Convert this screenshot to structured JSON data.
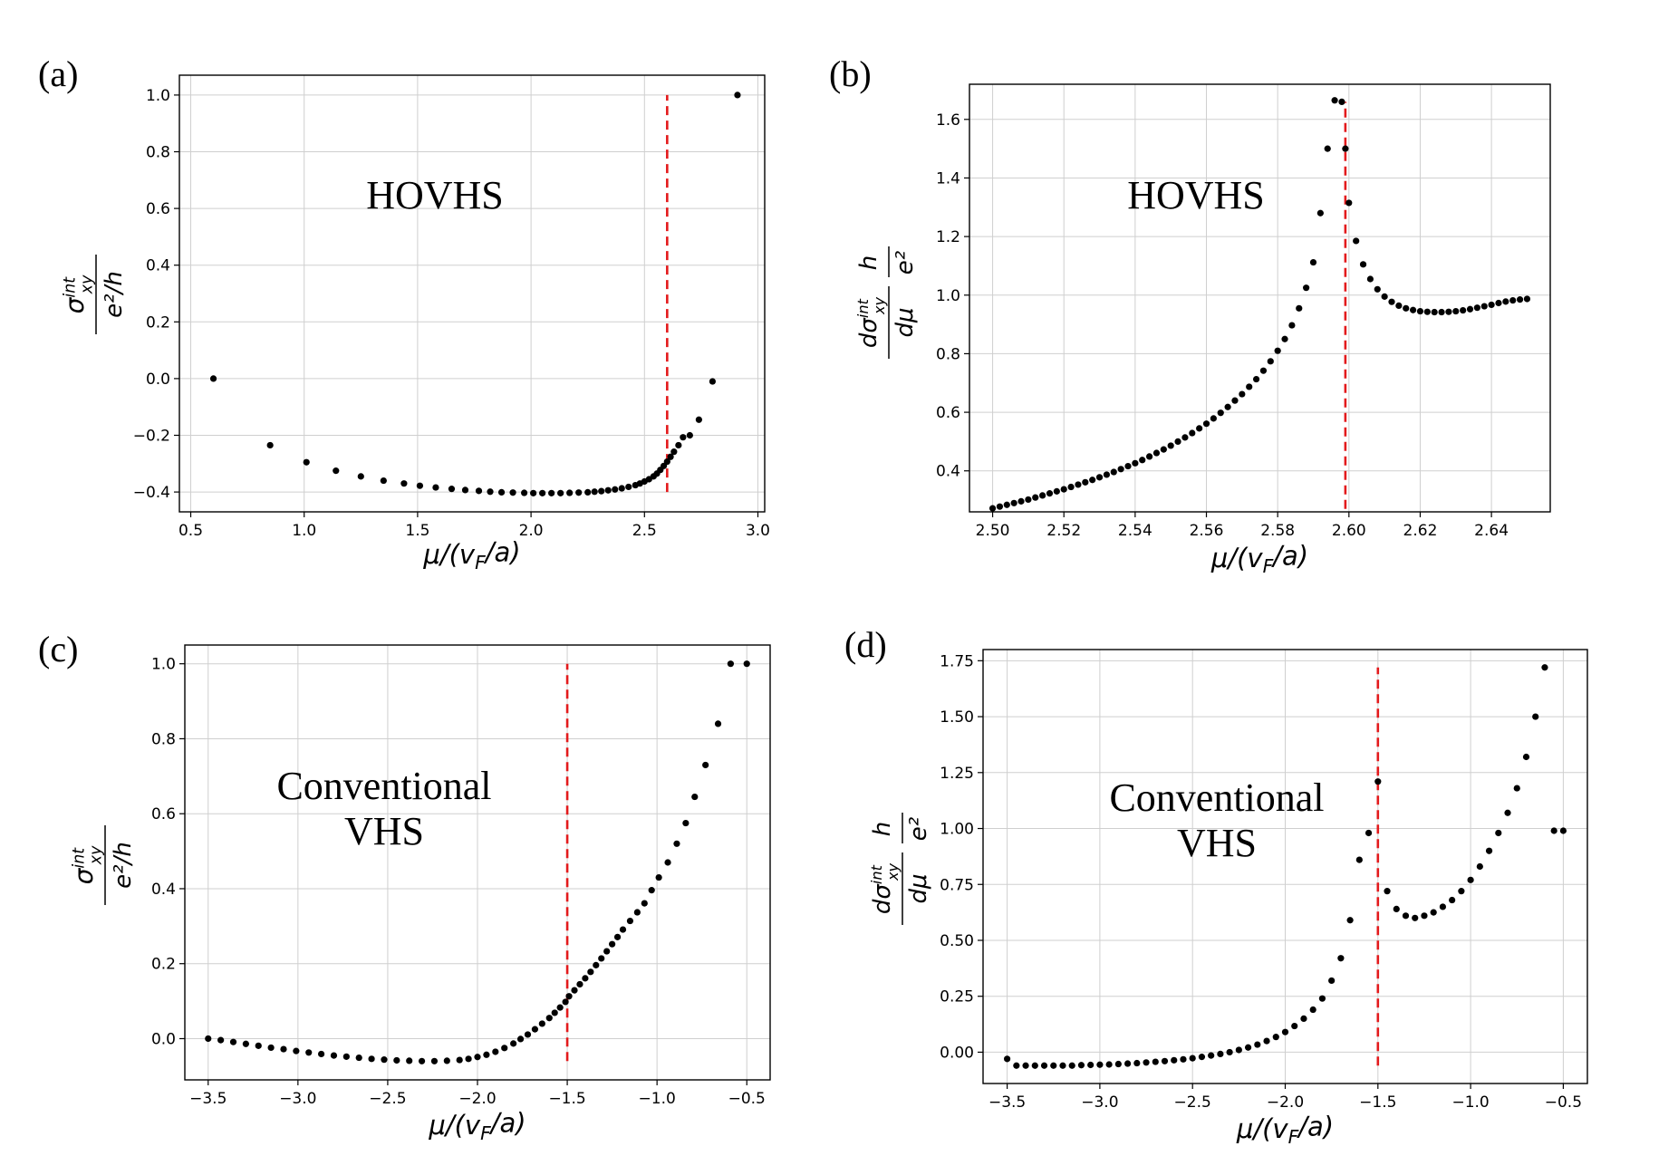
{
  "chart_data": [
    {
      "id": "a",
      "type": "scatter",
      "panel_label": "(a)",
      "annotation": [
        "HOVHS"
      ],
      "xlabel": "μ/(v_F/a)",
      "ylabel": {
        "num": "σ_xy^int",
        "den": "e²/h"
      },
      "xlim": [
        0.45,
        3.03
      ],
      "ylim": [
        -0.47,
        1.07
      ],
      "xticks": [
        0.5,
        1.0,
        1.5,
        2.0,
        2.5,
        3.0
      ],
      "xtick_labels": [
        "0.5",
        "1.0",
        "1.5",
        "2.0",
        "2.5",
        "3.0"
      ],
      "yticks": [
        -0.4,
        -0.2,
        0.0,
        0.2,
        0.4,
        0.6,
        0.8,
        1.0
      ],
      "ytick_labels": [
        "−0.4",
        "−0.2",
        "0.0",
        "0.2",
        "0.4",
        "0.6",
        "0.8",
        "1.0"
      ],
      "vline": {
        "x": 2.6,
        "y_range": [
          -0.4,
          1.0
        ],
        "color": "#e31a1c"
      },
      "grid": true,
      "x": [
        0.6,
        0.85,
        1.01,
        1.14,
        1.25,
        1.35,
        1.44,
        1.51,
        1.58,
        1.65,
        1.71,
        1.77,
        1.82,
        1.87,
        1.92,
        1.97,
        2.01,
        2.05,
        2.09,
        2.13,
        2.17,
        2.21,
        2.25,
        2.28,
        2.31,
        2.34,
        2.37,
        2.4,
        2.43,
        2.46,
        2.48,
        2.5,
        2.52,
        2.54,
        2.555,
        2.57,
        2.585,
        2.6,
        2.615,
        2.63,
        2.65,
        2.67,
        2.7,
        2.74,
        2.8,
        2.91
      ],
      "y": [
        0.0,
        -0.235,
        -0.295,
        -0.325,
        -0.345,
        -0.36,
        -0.37,
        -0.378,
        -0.384,
        -0.389,
        -0.393,
        -0.396,
        -0.399,
        -0.401,
        -0.402,
        -0.403,
        -0.404,
        -0.404,
        -0.404,
        -0.404,
        -0.403,
        -0.402,
        -0.401,
        -0.399,
        -0.397,
        -0.394,
        -0.391,
        -0.387,
        -0.382,
        -0.376,
        -0.37,
        -0.363,
        -0.355,
        -0.345,
        -0.335,
        -0.322,
        -0.308,
        -0.293,
        -0.276,
        -0.258,
        -0.235,
        -0.207,
        -0.2,
        -0.145,
        -0.01,
        1.0
      ],
      "point_color": "#000000",
      "vline_color": "#e31a1c"
    },
    {
      "id": "b",
      "type": "scatter",
      "panel_label": "(b)",
      "annotation": [
        "HOVHS"
      ],
      "xlabel": "μ/(v_F/a)",
      "ylabel": {
        "num": "dσ_xy^int",
        "den": "dμ",
        "num2": "h",
        "den2": "e²"
      },
      "xlim": [
        2.4935,
        2.6565
      ],
      "ylim": [
        0.26,
        1.72
      ],
      "xticks": [
        2.5,
        2.52,
        2.54,
        2.56,
        2.58,
        2.6,
        2.62,
        2.64
      ],
      "xtick_labels": [
        "2.50",
        "2.52",
        "2.54",
        "2.56",
        "2.58",
        "2.60",
        "2.62",
        "2.64"
      ],
      "yticks": [
        0.4,
        0.6,
        0.8,
        1.0,
        1.2,
        1.4,
        1.6
      ],
      "ytick_labels": [
        "0.4",
        "0.6",
        "0.8",
        "1.0",
        "1.2",
        "1.4",
        "1.6"
      ],
      "vline": {
        "x": 2.599,
        "y_range": [
          0.27,
          1.66
        ],
        "color": "#e31a1c"
      },
      "grid": true,
      "x": [
        2.5,
        2.502,
        2.504,
        2.506,
        2.508,
        2.51,
        2.512,
        2.514,
        2.516,
        2.518,
        2.52,
        2.522,
        2.524,
        2.526,
        2.528,
        2.53,
        2.532,
        2.534,
        2.536,
        2.538,
        2.54,
        2.542,
        2.544,
        2.546,
        2.548,
        2.55,
        2.552,
        2.554,
        2.556,
        2.558,
        2.56,
        2.562,
        2.564,
        2.566,
        2.568,
        2.57,
        2.572,
        2.574,
        2.576,
        2.578,
        2.58,
        2.582,
        2.584,
        2.586,
        2.588,
        2.59,
        2.592,
        2.594,
        2.596,
        2.598,
        2.599,
        2.6,
        2.602,
        2.604,
        2.606,
        2.608,
        2.61,
        2.612,
        2.614,
        2.616,
        2.618,
        2.62,
        2.622,
        2.624,
        2.626,
        2.628,
        2.63,
        2.632,
        2.634,
        2.636,
        2.638,
        2.64,
        2.642,
        2.644,
        2.646,
        2.648,
        2.65
      ],
      "y": [
        0.272,
        0.278,
        0.284,
        0.29,
        0.296,
        0.302,
        0.309,
        0.316,
        0.323,
        0.33,
        0.337,
        0.345,
        0.353,
        0.361,
        0.369,
        0.378,
        0.387,
        0.396,
        0.406,
        0.416,
        0.426,
        0.437,
        0.449,
        0.461,
        0.473,
        0.486,
        0.5,
        0.514,
        0.529,
        0.545,
        0.561,
        0.579,
        0.598,
        0.618,
        0.64,
        0.662,
        0.687,
        0.713,
        0.742,
        0.774,
        0.81,
        0.85,
        0.897,
        0.955,
        1.025,
        1.112,
        1.28,
        1.5,
        1.665,
        1.66,
        1.5,
        1.315,
        1.185,
        1.105,
        1.055,
        1.02,
        0.995,
        0.977,
        0.964,
        0.955,
        0.949,
        0.945,
        0.943,
        0.942,
        0.942,
        0.943,
        0.945,
        0.948,
        0.952,
        0.957,
        0.962,
        0.967,
        0.973,
        0.978,
        0.982,
        0.985,
        0.987
      ],
      "point_color": "#000000",
      "vline_color": "#e31a1c"
    },
    {
      "id": "c",
      "type": "scatter",
      "panel_label": "(c)",
      "annotation": [
        "Conventional",
        "VHS"
      ],
      "xlabel": "μ/(v_F/a)",
      "ylabel": {
        "num": "σ_xy^int",
        "den": "e²/h"
      },
      "xlim": [
        -3.63,
        -0.37
      ],
      "ylim": [
        -0.11,
        1.05
      ],
      "xticks": [
        -3.5,
        -3.0,
        -2.5,
        -2.0,
        -1.5,
        -1.0,
        -0.5
      ],
      "xtick_labels": [
        "−3.5",
        "−3.0",
        "−2.5",
        "−2.0",
        "−1.5",
        "−1.0",
        "−0.5"
      ],
      "yticks": [
        0.0,
        0.2,
        0.4,
        0.6,
        0.8,
        1.0
      ],
      "ytick_labels": [
        "0.0",
        "0.2",
        "0.4",
        "0.6",
        "0.8",
        "1.0"
      ],
      "vline": {
        "x": -1.5,
        "y_range": [
          -0.06,
          1.0
        ],
        "color": "#e31a1c"
      },
      "grid": true,
      "x": [
        -3.5,
        -3.43,
        -3.36,
        -3.29,
        -3.22,
        -3.15,
        -3.08,
        -3.01,
        -2.94,
        -2.87,
        -2.8,
        -2.73,
        -2.66,
        -2.59,
        -2.52,
        -2.45,
        -2.38,
        -2.31,
        -2.24,
        -2.17,
        -2.1,
        -2.05,
        -2.0,
        -1.95,
        -1.9,
        -1.85,
        -1.8,
        -1.76,
        -1.72,
        -1.68,
        -1.64,
        -1.6,
        -1.57,
        -1.54,
        -1.51,
        -1.49,
        -1.46,
        -1.43,
        -1.4,
        -1.37,
        -1.34,
        -1.31,
        -1.28,
        -1.25,
        -1.22,
        -1.19,
        -1.15,
        -1.11,
        -1.07,
        -1.03,
        -0.99,
        -0.94,
        -0.89,
        -0.84,
        -0.79,
        -0.73,
        -0.66,
        -0.59,
        -0.5
      ],
      "y": [
        0.0,
        -0.004,
        -0.009,
        -0.014,
        -0.019,
        -0.024,
        -0.028,
        -0.033,
        -0.037,
        -0.041,
        -0.045,
        -0.048,
        -0.051,
        -0.054,
        -0.056,
        -0.058,
        -0.059,
        -0.06,
        -0.06,
        -0.059,
        -0.057,
        -0.054,
        -0.049,
        -0.043,
        -0.035,
        -0.025,
        -0.013,
        -0.001,
        0.011,
        0.025,
        0.04,
        0.055,
        0.069,
        0.083,
        0.098,
        0.113,
        0.129,
        0.145,
        0.161,
        0.178,
        0.196,
        0.214,
        0.233,
        0.252,
        0.271,
        0.291,
        0.314,
        0.337,
        0.361,
        0.396,
        0.43,
        0.47,
        0.52,
        0.575,
        0.645,
        0.73,
        0.84,
        1.0,
        1.0
      ],
      "point_color": "#000000",
      "vline_color": "#e31a1c"
    },
    {
      "id": "d",
      "type": "scatter",
      "panel_label": "(d)",
      "annotation": [
        "Conventional",
        "VHS"
      ],
      "xlabel": "μ/(v_F/a)",
      "ylabel": {
        "num": "dσ_xy^int",
        "den": "dμ",
        "num2": "h",
        "den2": "e²"
      },
      "xlim": [
        -3.63,
        -0.37
      ],
      "ylim": [
        -0.14,
        1.8
      ],
      "xticks": [
        -3.5,
        -3.0,
        -2.5,
        -2.0,
        -1.5,
        -1.0,
        -0.5
      ],
      "xtick_labels": [
        "−3.5",
        "−3.0",
        "−2.5",
        "−2.0",
        "−1.5",
        "−1.0",
        "−0.5"
      ],
      "yticks": [
        0.0,
        0.25,
        0.5,
        0.75,
        1.0,
        1.25,
        1.5,
        1.75
      ],
      "ytick_labels": [
        "0.00",
        "0.25",
        "0.50",
        "0.75",
        "1.00",
        "1.25",
        "1.50",
        "1.75"
      ],
      "vline": {
        "x": -1.5,
        "y_range": [
          -0.06,
          1.72
        ],
        "color": "#e31a1c"
      },
      "grid": true,
      "x": [
        -3.5,
        -3.45,
        -3.4,
        -3.35,
        -3.3,
        -3.25,
        -3.2,
        -3.15,
        -3.1,
        -3.05,
        -3.0,
        -2.95,
        -2.9,
        -2.85,
        -2.8,
        -2.75,
        -2.7,
        -2.65,
        -2.6,
        -2.55,
        -2.5,
        -2.45,
        -2.4,
        -2.35,
        -2.3,
        -2.25,
        -2.2,
        -2.15,
        -2.1,
        -2.05,
        -2.0,
        -1.95,
        -1.9,
        -1.85,
        -1.8,
        -1.75,
        -1.7,
        -1.65,
        -1.6,
        -1.55,
        -1.5,
        -1.45,
        -1.4,
        -1.35,
        -1.3,
        -1.25,
        -1.2,
        -1.15,
        -1.1,
        -1.05,
        -1.0,
        -0.95,
        -0.9,
        -0.85,
        -0.8,
        -0.75,
        -0.7,
        -0.65,
        -0.6,
        -0.55,
        -0.5
      ],
      "y": [
        -0.03,
        -0.06,
        -0.06,
        -0.06,
        -0.06,
        -0.06,
        -0.06,
        -0.06,
        -0.058,
        -0.057,
        -0.056,
        -0.055,
        -0.053,
        -0.051,
        -0.049,
        -0.046,
        -0.043,
        -0.04,
        -0.036,
        -0.032,
        -0.027,
        -0.021,
        -0.015,
        -0.008,
        0.0,
        0.01,
        0.021,
        0.034,
        0.05,
        0.068,
        0.09,
        0.117,
        0.15,
        0.19,
        0.24,
        0.32,
        0.42,
        0.59,
        0.86,
        0.98,
        1.21,
        0.72,
        0.64,
        0.61,
        0.6,
        0.61,
        0.625,
        0.65,
        0.68,
        0.72,
        0.77,
        0.83,
        0.9,
        0.98,
        1.07,
        1.18,
        1.32,
        1.5,
        1.72,
        0.99,
        0.99
      ],
      "point_color": "#000000",
      "vline_color": "#e31a1c"
    }
  ]
}
